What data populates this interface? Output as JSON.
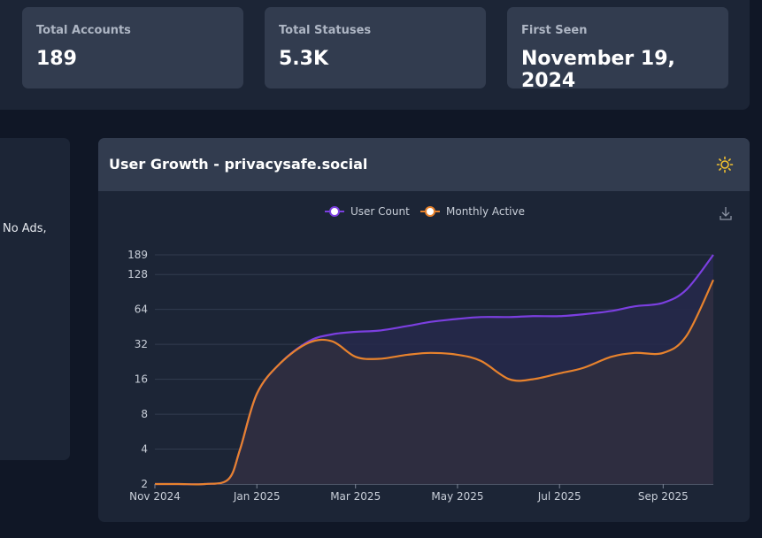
{
  "stats": [
    {
      "label": "Total Accounts",
      "value": "189"
    },
    {
      "label": "Total Statuses",
      "value": "5.3K"
    },
    {
      "label": "First Seen",
      "value": "November 19, 2024"
    }
  ],
  "left_panel": {
    "text": "No Ads,"
  },
  "chart_card": {
    "title": "User Growth - privacysafe.social",
    "theme_icon": "sun-icon",
    "download_icon": "download-icon"
  },
  "chart_data": {
    "type": "area",
    "yscale": "log2",
    "ylim": [
      2,
      189
    ],
    "y_ticks": [
      "2",
      "4",
      "8",
      "16",
      "32",
      "64",
      "128",
      "189"
    ],
    "x_ticks": [
      "Nov 2024",
      "Jan 2025",
      "Mar 2025",
      "May 2025",
      "Jul 2025",
      "Sep 2025"
    ],
    "legend_position": "top-center",
    "grid": true,
    "x": [
      "2024-11-01",
      "2024-11-15",
      "2024-12-01",
      "2024-12-15",
      "2024-12-22",
      "2025-01-01",
      "2025-01-15",
      "2025-02-01",
      "2025-02-15",
      "2025-03-01",
      "2025-03-15",
      "2025-04-01",
      "2025-04-15",
      "2025-05-01",
      "2025-05-15",
      "2025-06-01",
      "2025-06-15",
      "2025-07-01",
      "2025-07-15",
      "2025-08-01",
      "2025-08-15",
      "2025-09-01",
      "2025-09-15",
      "2025-10-01"
    ],
    "series": [
      {
        "name": "User Count",
        "color": "#7b3fe0",
        "fill": "#26294a",
        "values": [
          2,
          2,
          2,
          2.2,
          4,
          12,
          22,
          34,
          39,
          41,
          42,
          46,
          50,
          53,
          55,
          55,
          56,
          56,
          58,
          62,
          68,
          73,
          95,
          189
        ]
      },
      {
        "name": "Monthly Active",
        "color": "#e7822d",
        "fill": "#302e3f",
        "values": [
          2,
          2,
          2,
          2.2,
          4,
          12,
          22,
          33,
          34,
          25,
          24,
          26,
          27,
          26,
          23,
          16,
          16,
          18,
          20,
          25,
          27,
          27,
          38,
          115
        ]
      }
    ]
  }
}
